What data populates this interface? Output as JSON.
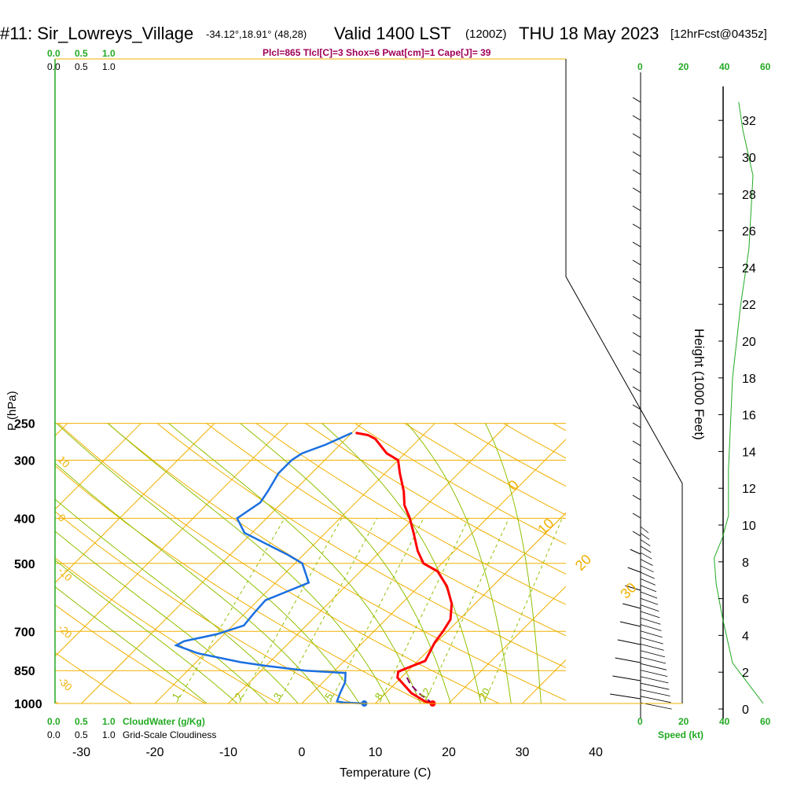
{
  "header": {
    "station": "#11: Sir_Lowreys_Village",
    "coords": "-34.12°,18.91° (48,28)",
    "valid": "Valid 1400 LST",
    "zulu": "(1200Z)",
    "date": "THU 18 May 2023",
    "forecast": "[12hrFcst@0435z]"
  },
  "indices": "Plcl=865 Tlcl[C]=3 Shox=6 Pwat[cm]=1 Cape[J]= 39",
  "colors": {
    "temperature": "#ff0000",
    "dewpoint": "#1a6fe0",
    "parcel": "#800060",
    "isobars_isotherms": "#f0b000",
    "dry_adiabats": "#f0b000",
    "moist_adiabats": "#90c000",
    "mixing_ratio": "#90c000",
    "height_curve": "#22aa22",
    "cloud_scale": "#22aa22",
    "indices_text": "#a0005a"
  },
  "cloud_scale_labels": [
    "0.0",
    "0.5",
    "1.0"
  ],
  "cloud_water_label": "CloudWater (g/Kg)",
  "cloudiness_label": "Grid-Scale Cloudiness",
  "speed_label": "Speed (kt)",
  "height_axis_label": "Height (1000 Feet)",
  "chart_data": {
    "type": "line",
    "title": "#11: Sir_Lowreys_Village  Valid 1400 LST (1200Z) THU 18 May 2023",
    "xlabel": "Temperature (C)",
    "ylabel": "P (hPa)",
    "x_ticks": [
      -30,
      -20,
      -10,
      0,
      10,
      20,
      30,
      40
    ],
    "y_ticks": [
      250,
      300,
      400,
      500,
      700,
      850,
      1000
    ],
    "height_ticks": [
      0,
      2,
      4,
      6,
      8,
      10,
      12,
      14,
      16,
      18,
      20,
      22,
      24,
      26,
      28,
      30,
      32
    ],
    "speed_ticks": [
      0,
      20,
      40,
      60
    ],
    "xlim": [
      -35,
      45
    ],
    "ylim": [
      1050,
      250
    ],
    "scale": "log-pressure, skew-T",
    "isotherm_labels": [
      {
        "label": "0",
        "T": 0,
        "p": 350
      },
      {
        "label": "10",
        "T": 10,
        "p": 435
      },
      {
        "label": "20",
        "T": 20,
        "p": 520
      },
      {
        "label": "30",
        "T": 30,
        "p": 598
      }
    ],
    "left_theta_labels": [
      {
        "label": "10",
        "p": 300
      },
      {
        "label": "0",
        "p": 400
      },
      {
        "label": "-10",
        "p": 520
      },
      {
        "label": "-20",
        "p": 690
      },
      {
        "label": "-30",
        "p": 895
      }
    ],
    "mixing_ratio_labels": [
      "1",
      "2",
      "3",
      "5",
      "8",
      "12",
      "20"
    ],
    "mixing_ratio_values": [
      1,
      2,
      3,
      5,
      8,
      12,
      20
    ],
    "series": [
      {
        "name": "Temperature",
        "x": [
          17.8,
          16.5,
          13.5,
          9.5,
          8.8,
          9.2,
          11.0,
          10.5,
          9.8,
          9.4,
          8.8,
          6.8,
          3.8,
          0.5,
          -2.5,
          -5.0,
          -8.0,
          -10.5,
          -13.0,
          -15.0,
          -18.0,
          -20.0,
          -22.5,
          -26.0,
          -27.5,
          -29.5
        ],
        "y": [
          1000,
          990,
          950,
          880,
          855,
          845,
          810,
          780,
          740,
          700,
          660,
          610,
          560,
          520,
          500,
          470,
          430,
          400,
          375,
          350,
          320,
          300,
          290,
          270,
          265,
          262
        ]
      },
      {
        "name": "Dewpoint",
        "x": [
          8.5,
          5.5,
          4.5,
          3.8,
          3.0,
          1.8,
          -1.0,
          -4.0,
          -10.0,
          -14.0,
          -21.0,
          -25.0,
          -24.5,
          -21.0,
          -18.5,
          -18.8,
          -19.0,
          -15.5,
          -19.0,
          -22.0,
          -31.0,
          -34.0,
          -33.0,
          -33.5,
          -34.5,
          -34.5,
          -34.0,
          -32.0,
          -30.0
        ],
        "y": [
          1000,
          995,
          990,
          950,
          900,
          860,
          855,
          850,
          830,
          815,
          780,
          750,
          735,
          710,
          680,
          640,
          600,
          550,
          500,
          480,
          430,
          400,
          370,
          350,
          320,
          300,
          290,
          278,
          262
        ]
      },
      {
        "name": "Parcel",
        "x": [
          17.8,
          14.5,
          12.2,
          10.8,
          10.2
        ],
        "y": [
          1000,
          950,
          910,
          880,
          865
        ]
      }
    ],
    "surface_points": [
      {
        "series": "Temperature",
        "T": 17.8,
        "p": 1000
      },
      {
        "series": "Dewpoint",
        "T": 8.5,
        "p": 1000
      }
    ],
    "height_curve": [
      {
        "speed": 60,
        "height": 0.3
      },
      {
        "speed": 45,
        "height": 2.5
      },
      {
        "speed": 40,
        "height": 5.0
      },
      {
        "speed": 37,
        "height": 6.8
      },
      {
        "speed": 36,
        "height": 8.2
      },
      {
        "speed": 40,
        "height": 9.3
      },
      {
        "speed": 43,
        "height": 10.5
      },
      {
        "speed": 43,
        "height": 13.0
      },
      {
        "speed": 45,
        "height": 18.0
      },
      {
        "speed": 49,
        "height": 22.0
      },
      {
        "speed": 53,
        "height": 25.0
      },
      {
        "speed": 54,
        "height": 27.0
      },
      {
        "speed": 55,
        "height": 29.0
      },
      {
        "speed": 50,
        "height": 31.5
      },
      {
        "speed": 48,
        "height": 33.0
      }
    ],
    "grid": true
  }
}
